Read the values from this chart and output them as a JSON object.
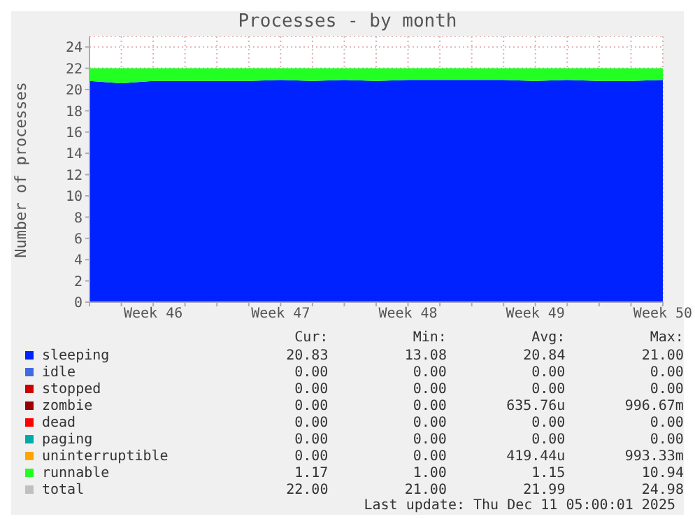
{
  "chart_data": {
    "type": "area",
    "title": "Processes - by month",
    "ylabel": "Number of processes",
    "stacked": true,
    "grid": true,
    "legend": "bottom",
    "ylim": [
      0,
      25
    ],
    "yticks": [
      0,
      2,
      4,
      6,
      8,
      10,
      12,
      14,
      16,
      18,
      20,
      22,
      24
    ],
    "categories": [
      null,
      null,
      "Week 46",
      null,
      null,
      null,
      "Week 47",
      null,
      null,
      null,
      "Week 48",
      null,
      null,
      null,
      "Week 49",
      null,
      null,
      null,
      "Week 50"
    ],
    "series": [
      {
        "name": "sleeping",
        "color": "#0022ff",
        "values": [
          20.8,
          20.6,
          20.8,
          20.8,
          20.8,
          20.8,
          20.9,
          20.8,
          20.9,
          20.8,
          20.9,
          20.9,
          20.9,
          20.9,
          20.8,
          20.9,
          20.8,
          20.8,
          20.9
        ]
      },
      {
        "name": "idle",
        "color": "#4169e1",
        "values": [
          null,
          null,
          null,
          null,
          null,
          null,
          null,
          null,
          null,
          null,
          null,
          null,
          null,
          null,
          null,
          null,
          null,
          null,
          null
        ]
      },
      {
        "name": "stopped",
        "color": "#cc0000",
        "values": [
          null,
          null,
          null,
          null,
          null,
          null,
          null,
          null,
          null,
          null,
          null,
          null,
          null,
          null,
          null,
          null,
          null,
          null,
          null
        ]
      },
      {
        "name": "zombie",
        "color": "#990000",
        "values": [
          null,
          null,
          null,
          null,
          null,
          null,
          null,
          null,
          null,
          null,
          null,
          null,
          null,
          null,
          null,
          null,
          null,
          null,
          null
        ]
      },
      {
        "name": "dead",
        "color": "#ff0000",
        "values": [
          null,
          null,
          null,
          null,
          null,
          null,
          null,
          null,
          null,
          null,
          null,
          null,
          null,
          null,
          null,
          null,
          null,
          null,
          null
        ]
      },
      {
        "name": "paging",
        "color": "#00aaaa",
        "values": [
          null,
          null,
          null,
          null,
          null,
          null,
          null,
          null,
          null,
          null,
          null,
          null,
          null,
          null,
          null,
          null,
          null,
          null,
          null
        ]
      },
      {
        "name": "uninterruptible",
        "color": "#ffa500",
        "values": [
          null,
          null,
          null,
          null,
          null,
          null,
          null,
          null,
          null,
          null,
          null,
          null,
          null,
          null,
          null,
          null,
          null,
          null,
          null
        ]
      },
      {
        "name": "runnable",
        "color": "#22ff22",
        "values": [
          1.2,
          1.4,
          1.2,
          1.2,
          1.2,
          1.2,
          1.1,
          1.2,
          1.1,
          1.2,
          1.1,
          1.1,
          1.1,
          1.1,
          1.2,
          1.1,
          1.2,
          1.2,
          1.1
        ]
      },
      {
        "name": "total",
        "color": "#c0c0c0",
        "values": [
          null,
          null,
          null,
          null,
          null,
          null,
          null,
          null,
          null,
          null,
          null,
          null,
          null,
          null,
          null,
          null,
          null,
          null,
          null
        ]
      }
    ],
    "annotations": [
      "Cur:",
      "Min:",
      "Avg:",
      "Max:",
      "20.83",
      "13.08",
      "20.84",
      "21.00",
      "0.00",
      "0.00",
      "0.00",
      "0.00",
      "0.00",
      "0.00",
      "0.00",
      "0.00",
      "0.00",
      "0.00",
      "635.76u",
      "996.67m",
      "0.00",
      "0.00",
      "0.00",
      "0.00",
      "0.00",
      "0.00",
      "0.00",
      "0.00",
      "0.00",
      "0.00",
      "419.44u",
      "993.33m",
      "1.17",
      "1.00",
      "1.15",
      "10.94",
      "22.00",
      "21.00",
      "21.99",
      "24.98",
      "Last update: Thu Dec 11 05:00:01 2025"
    ]
  }
}
